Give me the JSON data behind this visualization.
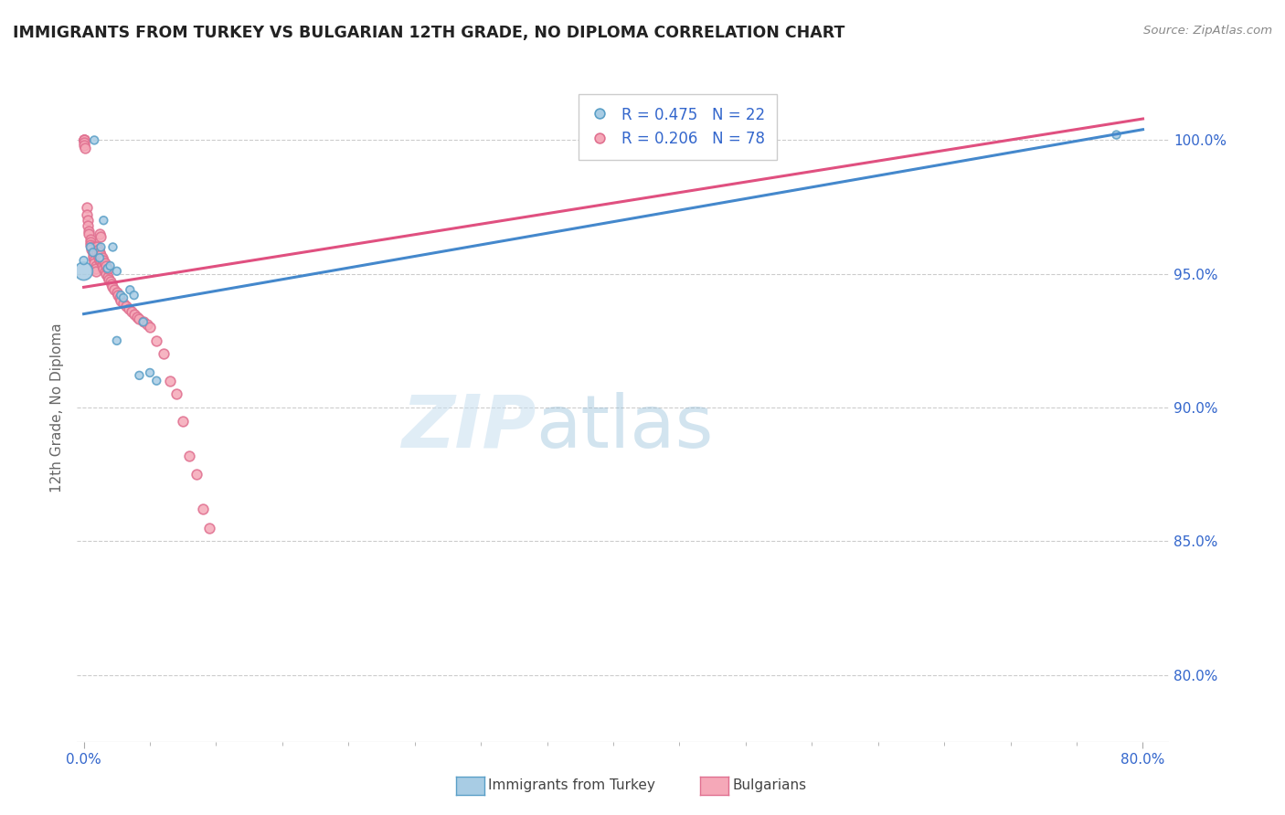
{
  "title": "IMMIGRANTS FROM TURKEY VS BULGARIAN 12TH GRADE, NO DIPLOMA CORRELATION CHART",
  "source": "Source: ZipAtlas.com",
  "ylabel": "12th Grade, No Diploma",
  "xlabel": "",
  "x_ticks_labels": [
    "0.0%",
    "80.0%"
  ],
  "x_ticks_pos": [
    0.0,
    0.8
  ],
  "y_ticks_labels": [
    "100.0%",
    "95.0%",
    "90.0%",
    "85.0%",
    "80.0%"
  ],
  "y_ticks_pos": [
    1.0,
    0.95,
    0.9,
    0.85,
    0.8
  ],
  "xlim": [
    -0.005,
    0.82
  ],
  "ylim": [
    0.775,
    1.025
  ],
  "legend_blue_r": "R = 0.475",
  "legend_blue_n": "N = 22",
  "legend_pink_r": "R = 0.206",
  "legend_pink_n": "N = 78",
  "blue_fill": "#a8cce4",
  "blue_edge": "#5a9fc7",
  "pink_fill": "#f5a8b8",
  "pink_edge": "#e07090",
  "blue_line_color": "#4488cc",
  "pink_line_color": "#e05080",
  "watermark_zip": "ZIP",
  "watermark_atlas": "atlas",
  "grid_color": "#cccccc",
  "axis_color": "#3366cc",
  "bg_color": "#ffffff",
  "blue_scatter_x": [
    0.008,
    0.0,
    0.0,
    0.005,
    0.007,
    0.012,
    0.013,
    0.015,
    0.018,
    0.02,
    0.022,
    0.025,
    0.025,
    0.028,
    0.03,
    0.035,
    0.038,
    0.042,
    0.045,
    0.05,
    0.055,
    0.78
  ],
  "blue_scatter_y": [
    1.0,
    0.951,
    0.955,
    0.96,
    0.958,
    0.956,
    0.96,
    0.97,
    0.952,
    0.953,
    0.96,
    0.951,
    0.925,
    0.942,
    0.941,
    0.944,
    0.942,
    0.912,
    0.932,
    0.913,
    0.91,
    1.002
  ],
  "blue_scatter_size": [
    40,
    200,
    40,
    40,
    40,
    40,
    40,
    40,
    40,
    40,
    40,
    40,
    40,
    40,
    40,
    40,
    40,
    40,
    40,
    40,
    40,
    40
  ],
  "pink_scatter_x": [
    0.0,
    0.0,
    0.0,
    0.0,
    0.0,
    0.0,
    0.001,
    0.002,
    0.002,
    0.003,
    0.003,
    0.004,
    0.004,
    0.005,
    0.005,
    0.005,
    0.006,
    0.006,
    0.007,
    0.007,
    0.007,
    0.008,
    0.008,
    0.009,
    0.009,
    0.009,
    0.01,
    0.01,
    0.01,
    0.011,
    0.011,
    0.012,
    0.012,
    0.013,
    0.013,
    0.014,
    0.014,
    0.015,
    0.016,
    0.017,
    0.018,
    0.019,
    0.02,
    0.021,
    0.022,
    0.023,
    0.025,
    0.026,
    0.027,
    0.028,
    0.03,
    0.032,
    0.034,
    0.036,
    0.038,
    0.04,
    0.042,
    0.045,
    0.048,
    0.05,
    0.055,
    0.06,
    0.065,
    0.07,
    0.075,
    0.08,
    0.085,
    0.09,
    0.095,
    0.01,
    0.011,
    0.012,
    0.013,
    0.014,
    0.015,
    0.016,
    0.017,
    0.018
  ],
  "pink_scatter_y": [
    1.0,
    1.0,
    1.0,
    1.0,
    0.999,
    0.998,
    0.997,
    0.975,
    0.972,
    0.97,
    0.968,
    0.966,
    0.965,
    0.963,
    0.962,
    0.961,
    0.96,
    0.959,
    0.958,
    0.957,
    0.956,
    0.955,
    0.954,
    0.953,
    0.952,
    0.951,
    0.96,
    0.959,
    0.958,
    0.957,
    0.956,
    0.955,
    0.965,
    0.964,
    0.955,
    0.954,
    0.953,
    0.952,
    0.951,
    0.95,
    0.949,
    0.948,
    0.947,
    0.946,
    0.945,
    0.944,
    0.943,
    0.942,
    0.941,
    0.94,
    0.939,
    0.938,
    0.937,
    0.936,
    0.935,
    0.934,
    0.933,
    0.932,
    0.931,
    0.93,
    0.925,
    0.92,
    0.91,
    0.905,
    0.895,
    0.882,
    0.875,
    0.862,
    0.855,
    0.96,
    0.959,
    0.958,
    0.957,
    0.956,
    0.955,
    0.954,
    0.953,
    0.952
  ],
  "blue_line_x0": 0.0,
  "blue_line_x1": 0.8,
  "blue_line_y0": 0.935,
  "blue_line_y1": 1.004,
  "pink_line_x0": 0.0,
  "pink_line_x1": 0.8,
  "pink_line_y0": 0.945,
  "pink_line_y1": 1.008
}
